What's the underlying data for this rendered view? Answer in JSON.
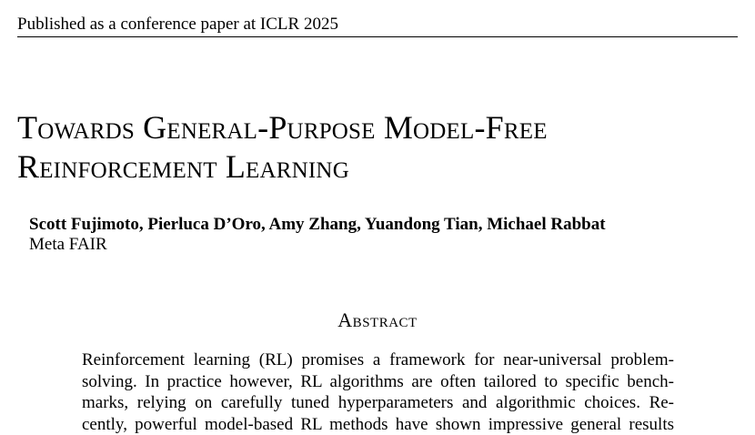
{
  "header": {
    "running_head": "Published as a conference paper at ICLR 2025"
  },
  "title": {
    "lines": [
      "Towards General-Purpose Model-Free",
      "Reinforcement Learning"
    ]
  },
  "authors": {
    "names": "Scott Fujimoto, Pierluca D’Oro, Amy Zhang, Yuandong Tian, Michael Rabbat",
    "affiliation": "Meta FAIR"
  },
  "abstract": {
    "heading": "Abstract",
    "lines": [
      "Reinforcement learning (RL) promises a framework for near-universal problem-",
      "solving. In practice however, RL algorithms are often tailored to specific bench-",
      "marks, relying on carefully tuned hyperparameters and algorithmic choices. Re-",
      "cently, powerful model-based RL methods have shown impressive general results"
    ]
  }
}
